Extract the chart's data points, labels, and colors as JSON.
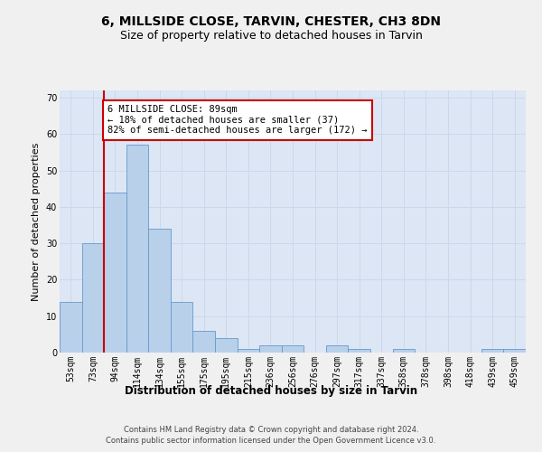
{
  "title": "6, MILLSIDE CLOSE, TARVIN, CHESTER, CH3 8DN",
  "subtitle": "Size of property relative to detached houses in Tarvin",
  "xlabel": "Distribution of detached houses by size in Tarvin",
  "ylabel": "Number of detached properties",
  "footnote1": "Contains HM Land Registry data © Crown copyright and database right 2024.",
  "footnote2": "Contains public sector information licensed under the Open Government Licence v3.0.",
  "bar_labels": [
    "53sqm",
    "73sqm",
    "94sqm",
    "114sqm",
    "134sqm",
    "155sqm",
    "175sqm",
    "195sqm",
    "215sqm",
    "236sqm",
    "256sqm",
    "276sqm",
    "297sqm",
    "317sqm",
    "337sqm",
    "358sqm",
    "378sqm",
    "398sqm",
    "418sqm",
    "439sqm",
    "459sqm"
  ],
  "bar_values": [
    14,
    30,
    44,
    57,
    34,
    14,
    6,
    4,
    1,
    2,
    2,
    0,
    2,
    1,
    0,
    1,
    0,
    0,
    0,
    1,
    1
  ],
  "bar_color": "#b8d0ea",
  "bar_edge_color": "#6699cc",
  "vline_color": "#cc0000",
  "annotation_text": "6 MILLSIDE CLOSE: 89sqm\n← 18% of detached houses are smaller (37)\n82% of semi-detached houses are larger (172) →",
  "annotation_box_color": "#ffffff",
  "annotation_box_edge_color": "#cc0000",
  "ylim": [
    0,
    72
  ],
  "yticks": [
    0,
    10,
    20,
    30,
    40,
    50,
    60,
    70
  ],
  "grid_color": "#ccd8ea",
  "background_color": "#dce6f5",
  "fig_background": "#f0f0f0",
  "title_fontsize": 10,
  "subtitle_fontsize": 9,
  "annotation_fontsize": 7.5,
  "tick_fontsize": 7,
  "xlabel_fontsize": 8.5,
  "ylabel_fontsize": 8
}
